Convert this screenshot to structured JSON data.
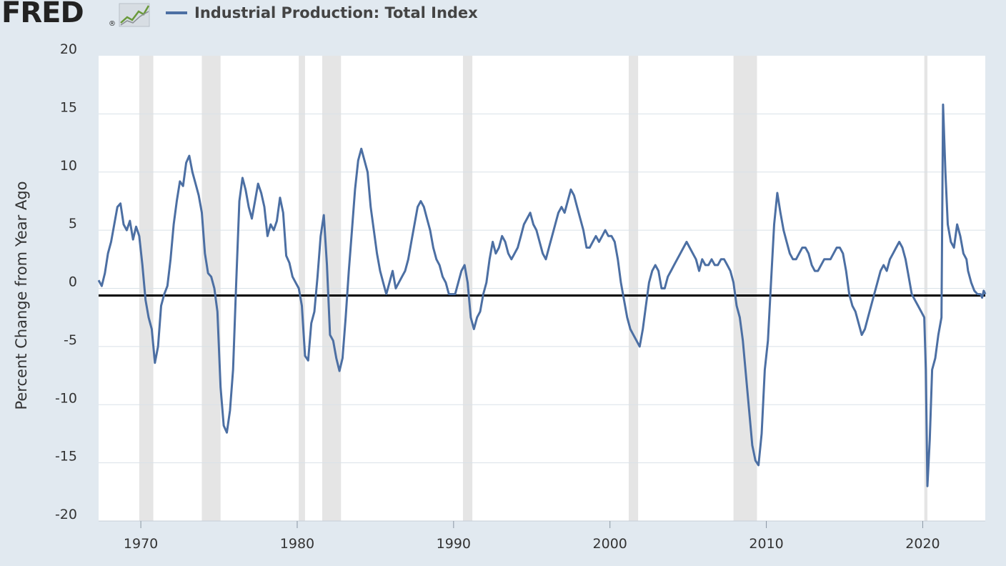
{
  "header": {
    "logo_text": "FRED",
    "logo_reg": "®",
    "legend_label": "Industrial Production: Total Index"
  },
  "colors": {
    "background": "#e1e9f0",
    "plot_background": "#ffffff",
    "series": "#4c6fa3",
    "recession": "#e5e5e5",
    "zero_line": "#000000",
    "grid": "#d9e1e8"
  },
  "chart_data": {
    "type": "line",
    "title": "",
    "xlabel": "",
    "ylabel": "Percent Change from Year Ago",
    "xlim": [
      1967.3,
      2024.0
    ],
    "ylim": [
      -20,
      20
    ],
    "y_ticks": [
      20,
      15,
      10,
      5,
      0,
      -5,
      -10,
      -15,
      -20
    ],
    "x_ticks": [
      1970,
      1980,
      1990,
      2000,
      2010,
      2020
    ],
    "reference_line": 0,
    "grid": "horizontal",
    "recessions": [
      [
        1969.9,
        1970.8
      ],
      [
        1973.9,
        1975.1
      ],
      [
        1980.1,
        1980.5
      ],
      [
        1981.6,
        1982.8
      ],
      [
        1990.6,
        1991.2
      ],
      [
        2001.2,
        2001.8
      ],
      [
        2007.9,
        2009.4
      ],
      [
        2020.1,
        2020.3
      ]
    ],
    "series": [
      {
        "name": "Industrial Production: Total Index",
        "points": [
          [
            1967.3,
            0.7
          ],
          [
            1967.5,
            0.2
          ],
          [
            1967.7,
            1.3
          ],
          [
            1967.9,
            3.0
          ],
          [
            1968.1,
            4.0
          ],
          [
            1968.3,
            5.5
          ],
          [
            1968.5,
            7.0
          ],
          [
            1968.7,
            7.3
          ],
          [
            1968.9,
            5.5
          ],
          [
            1969.1,
            5.0
          ],
          [
            1969.3,
            5.8
          ],
          [
            1969.5,
            4.2
          ],
          [
            1969.7,
            5.3
          ],
          [
            1969.9,
            4.5
          ],
          [
            1970.1,
            2.0
          ],
          [
            1970.3,
            -1.0
          ],
          [
            1970.5,
            -2.5
          ],
          [
            1970.7,
            -3.5
          ],
          [
            1970.9,
            -6.4
          ],
          [
            1971.1,
            -5.0
          ],
          [
            1971.3,
            -1.5
          ],
          [
            1971.5,
            -0.5
          ],
          [
            1971.7,
            0.2
          ],
          [
            1971.9,
            2.5
          ],
          [
            1972.1,
            5.5
          ],
          [
            1972.3,
            7.5
          ],
          [
            1972.5,
            9.2
          ],
          [
            1972.7,
            8.8
          ],
          [
            1972.9,
            10.8
          ],
          [
            1973.1,
            11.4
          ],
          [
            1973.3,
            10.0
          ],
          [
            1973.5,
            9.0
          ],
          [
            1973.7,
            8.0
          ],
          [
            1973.9,
            6.5
          ],
          [
            1974.1,
            3.0
          ],
          [
            1974.3,
            1.3
          ],
          [
            1974.5,
            1.0
          ],
          [
            1974.7,
            0.0
          ],
          [
            1974.9,
            -2.0
          ],
          [
            1975.1,
            -8.5
          ],
          [
            1975.3,
            -11.8
          ],
          [
            1975.5,
            -12.4
          ],
          [
            1975.7,
            -10.5
          ],
          [
            1975.9,
            -7.0
          ],
          [
            1976.1,
            0.5
          ],
          [
            1976.3,
            7.5
          ],
          [
            1976.5,
            9.5
          ],
          [
            1976.7,
            8.5
          ],
          [
            1976.9,
            7.0
          ],
          [
            1977.1,
            6.0
          ],
          [
            1977.3,
            7.5
          ],
          [
            1977.5,
            9.0
          ],
          [
            1977.7,
            8.2
          ],
          [
            1977.9,
            7.0
          ],
          [
            1978.1,
            4.5
          ],
          [
            1978.3,
            5.5
          ],
          [
            1978.5,
            5.0
          ],
          [
            1978.7,
            5.8
          ],
          [
            1978.9,
            7.8
          ],
          [
            1979.1,
            6.5
          ],
          [
            1979.3,
            2.8
          ],
          [
            1979.5,
            2.2
          ],
          [
            1979.7,
            1.0
          ],
          [
            1979.9,
            0.5
          ],
          [
            1980.1,
            0.0
          ],
          [
            1980.3,
            -1.5
          ],
          [
            1980.5,
            -5.8
          ],
          [
            1980.7,
            -6.2
          ],
          [
            1980.9,
            -3.0
          ],
          [
            1981.1,
            -2.0
          ],
          [
            1981.3,
            1.0
          ],
          [
            1981.5,
            4.5
          ],
          [
            1981.7,
            6.3
          ],
          [
            1981.9,
            2.0
          ],
          [
            1982.1,
            -4.0
          ],
          [
            1982.3,
            -4.5
          ],
          [
            1982.5,
            -6.0
          ],
          [
            1982.7,
            -7.1
          ],
          [
            1982.9,
            -6.0
          ],
          [
            1983.1,
            -2.5
          ],
          [
            1983.3,
            1.5
          ],
          [
            1983.5,
            5.0
          ],
          [
            1983.7,
            8.5
          ],
          [
            1983.9,
            11.0
          ],
          [
            1984.1,
            12.0
          ],
          [
            1984.3,
            11.0
          ],
          [
            1984.5,
            10.0
          ],
          [
            1984.7,
            7.0
          ],
          [
            1984.9,
            5.0
          ],
          [
            1985.1,
            3.0
          ],
          [
            1985.3,
            1.5
          ],
          [
            1985.5,
            0.5
          ],
          [
            1985.7,
            -0.5
          ],
          [
            1985.9,
            0.5
          ],
          [
            1986.1,
            1.5
          ],
          [
            1986.3,
            0.0
          ],
          [
            1986.5,
            0.5
          ],
          [
            1986.7,
            1.0
          ],
          [
            1986.9,
            1.5
          ],
          [
            1987.1,
            2.5
          ],
          [
            1987.3,
            4.0
          ],
          [
            1987.5,
            5.5
          ],
          [
            1987.7,
            7.0
          ],
          [
            1987.9,
            7.5
          ],
          [
            1988.1,
            7.0
          ],
          [
            1988.3,
            6.0
          ],
          [
            1988.5,
            5.0
          ],
          [
            1988.7,
            3.5
          ],
          [
            1988.9,
            2.5
          ],
          [
            1989.1,
            2.0
          ],
          [
            1989.3,
            1.0
          ],
          [
            1989.5,
            0.5
          ],
          [
            1989.7,
            -0.5
          ],
          [
            1989.9,
            -0.5
          ],
          [
            1990.1,
            -0.5
          ],
          [
            1990.3,
            0.5
          ],
          [
            1990.5,
            1.5
          ],
          [
            1990.7,
            2.0
          ],
          [
            1990.9,
            0.5
          ],
          [
            1991.1,
            -2.5
          ],
          [
            1991.3,
            -3.5
          ],
          [
            1991.5,
            -2.5
          ],
          [
            1991.7,
            -2.0
          ],
          [
            1991.9,
            -0.5
          ],
          [
            1992.1,
            0.5
          ],
          [
            1992.3,
            2.5
          ],
          [
            1992.5,
            4.0
          ],
          [
            1992.7,
            3.0
          ],
          [
            1992.9,
            3.5
          ],
          [
            1993.1,
            4.5
          ],
          [
            1993.3,
            4.0
          ],
          [
            1993.5,
            3.0
          ],
          [
            1993.7,
            2.5
          ],
          [
            1993.9,
            3.0
          ],
          [
            1994.1,
            3.5
          ],
          [
            1994.3,
            4.5
          ],
          [
            1994.5,
            5.5
          ],
          [
            1994.7,
            6.0
          ],
          [
            1994.9,
            6.5
          ],
          [
            1995.1,
            5.5
          ],
          [
            1995.3,
            5.0
          ],
          [
            1995.5,
            4.0
          ],
          [
            1995.7,
            3.0
          ],
          [
            1995.9,
            2.5
          ],
          [
            1996.1,
            3.5
          ],
          [
            1996.3,
            4.5
          ],
          [
            1996.5,
            5.5
          ],
          [
            1996.7,
            6.5
          ],
          [
            1996.9,
            7.0
          ],
          [
            1997.1,
            6.5
          ],
          [
            1997.3,
            7.5
          ],
          [
            1997.5,
            8.5
          ],
          [
            1997.7,
            8.0
          ],
          [
            1997.9,
            7.0
          ],
          [
            1998.1,
            6.0
          ],
          [
            1998.3,
            5.0
          ],
          [
            1998.5,
            3.5
          ],
          [
            1998.7,
            3.5
          ],
          [
            1998.9,
            4.0
          ],
          [
            1999.1,
            4.5
          ],
          [
            1999.3,
            4.0
          ],
          [
            1999.5,
            4.5
          ],
          [
            1999.7,
            5.0
          ],
          [
            1999.9,
            4.5
          ],
          [
            2000.1,
            4.5
          ],
          [
            2000.3,
            4.0
          ],
          [
            2000.5,
            2.5
          ],
          [
            2000.7,
            0.5
          ],
          [
            2000.9,
            -1.0
          ],
          [
            2001.1,
            -2.5
          ],
          [
            2001.3,
            -3.5
          ],
          [
            2001.5,
            -4.0
          ],
          [
            2001.7,
            -4.5
          ],
          [
            2001.9,
            -5.0
          ],
          [
            2002.1,
            -3.5
          ],
          [
            2002.3,
            -1.5
          ],
          [
            2002.5,
            0.5
          ],
          [
            2002.7,
            1.5
          ],
          [
            2002.9,
            2.0
          ],
          [
            2003.1,
            1.5
          ],
          [
            2003.3,
            0.0
          ],
          [
            2003.5,
            0.0
          ],
          [
            2003.7,
            1.0
          ],
          [
            2003.9,
            1.5
          ],
          [
            2004.1,
            2.0
          ],
          [
            2004.3,
            2.5
          ],
          [
            2004.5,
            3.0
          ],
          [
            2004.7,
            3.5
          ],
          [
            2004.9,
            4.0
          ],
          [
            2005.1,
            3.5
          ],
          [
            2005.3,
            3.0
          ],
          [
            2005.5,
            2.5
          ],
          [
            2005.7,
            1.5
          ],
          [
            2005.9,
            2.5
          ],
          [
            2006.1,
            2.0
          ],
          [
            2006.3,
            2.0
          ],
          [
            2006.5,
            2.5
          ],
          [
            2006.7,
            2.0
          ],
          [
            2006.9,
            2.0
          ],
          [
            2007.1,
            2.5
          ],
          [
            2007.3,
            2.5
          ],
          [
            2007.5,
            2.0
          ],
          [
            2007.7,
            1.5
          ],
          [
            2007.9,
            0.5
          ],
          [
            2008.1,
            -1.5
          ],
          [
            2008.3,
            -2.5
          ],
          [
            2008.5,
            -4.5
          ],
          [
            2008.7,
            -7.5
          ],
          [
            2008.9,
            -10.5
          ],
          [
            2009.1,
            -13.5
          ],
          [
            2009.3,
            -14.8
          ],
          [
            2009.5,
            -15.2
          ],
          [
            2009.7,
            -12.5
          ],
          [
            2009.9,
            -7.0
          ],
          [
            2010.1,
            -4.5
          ],
          [
            2010.3,
            0.5
          ],
          [
            2010.5,
            5.5
          ],
          [
            2010.7,
            8.2
          ],
          [
            2010.9,
            6.5
          ],
          [
            2011.1,
            5.0
          ],
          [
            2011.3,
            4.0
          ],
          [
            2011.5,
            3.0
          ],
          [
            2011.7,
            2.5
          ],
          [
            2011.9,
            2.5
          ],
          [
            2012.1,
            3.0
          ],
          [
            2012.3,
            3.5
          ],
          [
            2012.5,
            3.5
          ],
          [
            2012.7,
            3.0
          ],
          [
            2012.9,
            2.0
          ],
          [
            2013.1,
            1.5
          ],
          [
            2013.3,
            1.5
          ],
          [
            2013.5,
            2.0
          ],
          [
            2013.7,
            2.5
          ],
          [
            2013.9,
            2.5
          ],
          [
            2014.1,
            2.5
          ],
          [
            2014.3,
            3.0
          ],
          [
            2014.5,
            3.5
          ],
          [
            2014.7,
            3.5
          ],
          [
            2014.9,
            3.0
          ],
          [
            2015.1,
            1.5
          ],
          [
            2015.3,
            -0.5
          ],
          [
            2015.5,
            -1.5
          ],
          [
            2015.7,
            -2.0
          ],
          [
            2015.9,
            -3.0
          ],
          [
            2016.1,
            -4.0
          ],
          [
            2016.3,
            -3.5
          ],
          [
            2016.5,
            -2.5
          ],
          [
            2016.7,
            -1.5
          ],
          [
            2016.9,
            -0.5
          ],
          [
            2017.1,
            0.5
          ],
          [
            2017.3,
            1.5
          ],
          [
            2017.5,
            2.0
          ],
          [
            2017.7,
            1.5
          ],
          [
            2017.9,
            2.5
          ],
          [
            2018.1,
            3.0
          ],
          [
            2018.3,
            3.5
          ],
          [
            2018.5,
            4.0
          ],
          [
            2018.7,
            3.5
          ],
          [
            2018.9,
            2.5
          ],
          [
            2019.1,
            1.0
          ],
          [
            2019.3,
            -0.5
          ],
          [
            2019.5,
            -1.0
          ],
          [
            2019.7,
            -1.5
          ],
          [
            2019.9,
            -2.0
          ],
          [
            2020.1,
            -2.5
          ],
          [
            2020.2,
            -7.0
          ],
          [
            2020.3,
            -17.0
          ],
          [
            2020.45,
            -13.0
          ],
          [
            2020.6,
            -7.0
          ],
          [
            2020.8,
            -6.0
          ],
          [
            2021.0,
            -4.0
          ],
          [
            2021.2,
            -2.5
          ],
          [
            2021.3,
            15.8
          ],
          [
            2021.45,
            10.0
          ],
          [
            2021.6,
            5.5
          ],
          [
            2021.8,
            4.0
          ],
          [
            2022.0,
            3.5
          ],
          [
            2022.2,
            5.5
          ],
          [
            2022.4,
            4.5
          ],
          [
            2022.6,
            3.0
          ],
          [
            2022.8,
            2.5
          ],
          [
            2022.9,
            1.5
          ],
          [
            2023.1,
            0.5
          ],
          [
            2023.3,
            -0.2
          ],
          [
            2023.5,
            -0.5
          ],
          [
            2023.7,
            -0.5
          ],
          [
            2023.8,
            -0.8
          ],
          [
            2023.9,
            -0.2
          ],
          [
            2024.0,
            -0.5
          ]
        ]
      }
    ]
  }
}
